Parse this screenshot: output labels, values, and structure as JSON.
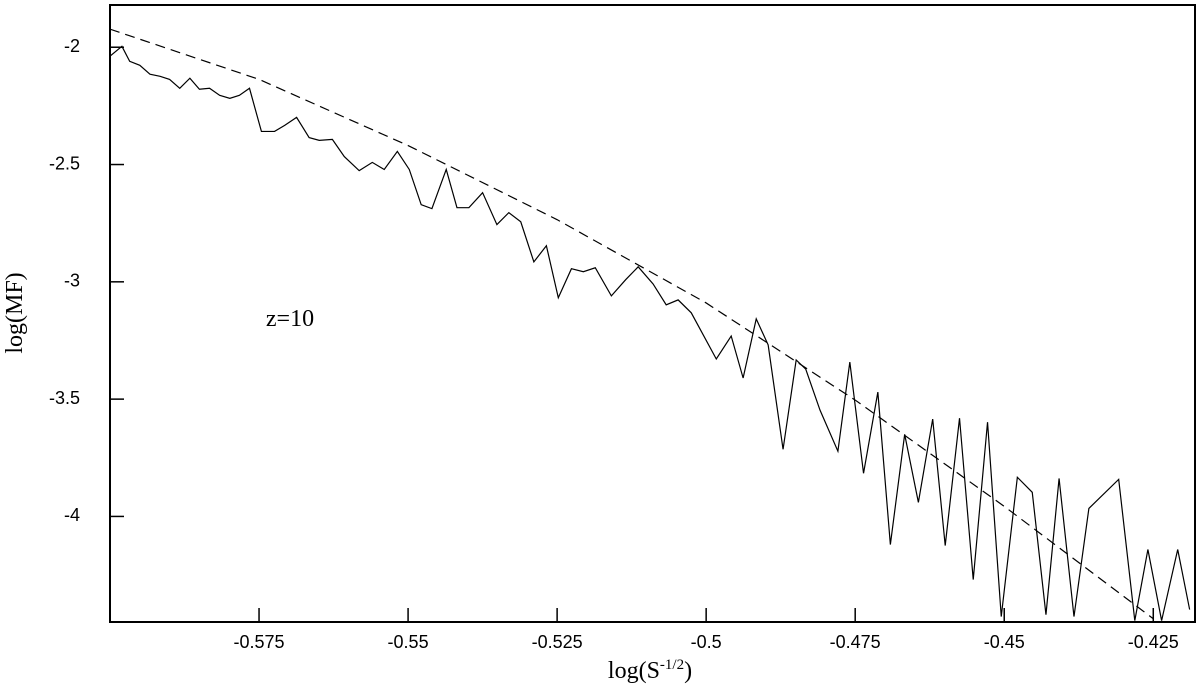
{
  "chart_data": {
    "type": "line",
    "xlabel": {
      "base": "log(S",
      "sup": "-1/2",
      "tail": ")"
    },
    "ylabel": "log(MF)",
    "annotation": "z=10",
    "xlim": [
      -0.6,
      -0.418
    ],
    "ylim": [
      -4.45,
      -1.82
    ],
    "xticks": [
      -0.575,
      -0.55,
      -0.525,
      -0.5,
      -0.475,
      -0.45,
      -0.425
    ],
    "yticks": [
      -4,
      -3.5,
      -3,
      -2.5,
      -2
    ],
    "grid": false,
    "series": [
      {
        "color": "#000000",
        "style": "solid",
        "x": [
          -0.6,
          -0.598,
          -0.5967,
          -0.595,
          -0.5933,
          -0.5916,
          -0.59,
          -0.5883,
          -0.5866,
          -0.585,
          -0.5833,
          -0.5816,
          -0.5799,
          -0.5783,
          -0.5766,
          -0.5746,
          -0.5724,
          -0.5707,
          -0.5687,
          -0.5666,
          -0.5649,
          -0.5627,
          -0.5607,
          -0.5582,
          -0.556,
          -0.554,
          -0.5518,
          -0.5498,
          -0.5478,
          -0.546,
          -0.5436,
          -0.5418,
          -0.5398,
          -0.5375,
          -0.5351,
          -0.5331,
          -0.5311,
          -0.5289,
          -0.5268,
          -0.5248,
          -0.5226,
          -0.5206,
          -0.5186,
          -0.5159,
          -0.5135,
          -0.5114,
          -0.5089,
          -0.5067,
          -0.5047,
          -0.5025,
          -0.4983,
          -0.4958,
          -0.4938,
          -0.4916,
          -0.4896,
          -0.4871,
          -0.4849,
          -0.4833,
          -0.4809,
          -0.4779,
          -0.4759,
          -0.4736,
          -0.4712,
          -0.4691,
          -0.4667,
          -0.4644,
          -0.462,
          -0.4599,
          -0.4575,
          -0.4552,
          -0.4528,
          -0.4505,
          -0.4478,
          -0.4453,
          -0.443,
          -0.4408,
          -0.4383,
          -0.4358,
          -0.4308,
          -0.4281,
          -0.4259,
          -0.4236,
          -0.4209,
          -0.4189
        ],
        "values": [
          -2.038,
          -1.996,
          -2.06,
          -2.077,
          -2.115,
          -2.124,
          -2.137,
          -2.175,
          -2.132,
          -2.179,
          -2.175,
          -2.205,
          -2.218,
          -2.205,
          -2.175,
          -2.359,
          -2.359,
          -2.333,
          -2.299,
          -2.385,
          -2.397,
          -2.393,
          -2.466,
          -2.526,
          -2.491,
          -2.521,
          -2.444,
          -2.521,
          -2.671,
          -2.688,
          -2.521,
          -2.684,
          -2.684,
          -2.62,
          -2.756,
          -2.705,
          -2.744,
          -2.915,
          -2.846,
          -3.068,
          -2.944,
          -2.957,
          -2.94,
          -3.06,
          -2.991,
          -2.936,
          -3.009,
          -3.098,
          -3.077,
          -3.132,
          -3.329,
          -3.231,
          -3.41,
          -3.158,
          -3.269,
          -3.714,
          -3.333,
          -3.372,
          -3.547,
          -3.722,
          -3.342,
          -3.816,
          -3.47,
          -4.12,
          -3.65,
          -3.94,
          -3.585,
          -4.124,
          -3.581,
          -4.269,
          -3.598,
          -4.427,
          -3.833,
          -3.897,
          -4.419,
          -3.838,
          -4.427,
          -3.966,
          -3.842,
          -4.444,
          -4.141,
          -4.444,
          -4.141,
          -4.397
        ]
      },
      {
        "color": "#000000",
        "style": "dashed",
        "x": [
          -0.6,
          -0.575,
          -0.55,
          -0.525,
          -0.5,
          -0.475,
          -0.45,
          -0.425
        ],
        "values": [
          -1.923,
          -2.137,
          -2.419,
          -2.735,
          -3.09,
          -3.504,
          -3.957,
          -4.436
        ]
      }
    ]
  }
}
